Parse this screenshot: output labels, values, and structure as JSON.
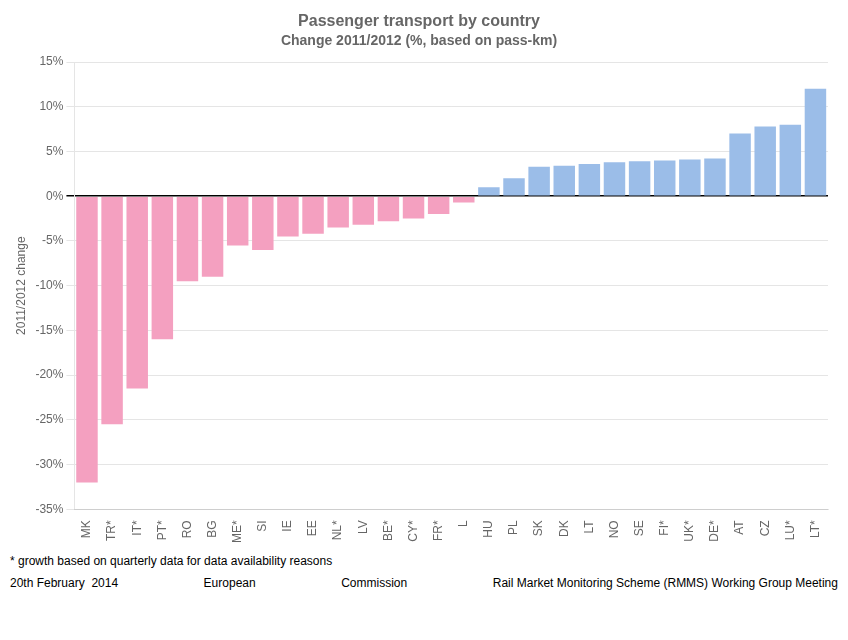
{
  "chart_data": {
    "type": "bar",
    "title": "Passenger transport by country",
    "subtitle": "Change 2011/2012 (%, based on pass-km)",
    "ylabel": "2011/2012 change",
    "categories": [
      "MK",
      "TR*",
      "IT*",
      "PT*",
      "RO",
      "BG",
      "ME*",
      "SI",
      "IE",
      "EE",
      "NL*",
      "LV",
      "BE*",
      "CY*",
      "FR*",
      "L",
      "HU",
      "PL",
      "SK",
      "DK",
      "LT",
      "NO",
      "SE",
      "FI*",
      "UK*",
      "DE*",
      "AT",
      "CZ",
      "LU*",
      "LT*"
    ],
    "values": [
      -32.0,
      -25.5,
      -21.5,
      -16.0,
      -9.5,
      -9.0,
      -5.5,
      -6.0,
      -4.5,
      -4.2,
      -3.5,
      -3.2,
      -2.8,
      -2.5,
      -2.0,
      -0.7,
      1.0,
      2.0,
      3.3,
      3.4,
      3.6,
      3.8,
      3.9,
      4.0,
      4.1,
      4.2,
      7.0,
      7.8,
      8.0,
      12.0
    ],
    "colors": [
      "#F4A0C0",
      "#F4A0C0",
      "#F4A0C0",
      "#F4A0C0",
      "#F4A0C0",
      "#F4A0C0",
      "#F4A0C0",
      "#F4A0C0",
      "#F4A0C0",
      "#F4A0C0",
      "#F4A0C0",
      "#F4A0C0",
      "#F4A0C0",
      "#F4A0C0",
      "#F4A0C0",
      "#F4A0C0",
      "#9BBDE8",
      "#9BBDE8",
      "#9BBDE8",
      "#9BBDE8",
      "#9BBDE8",
      "#9BBDE8",
      "#9BBDE8",
      "#9BBDE8",
      "#9BBDE8",
      "#9BBDE8",
      "#9BBDE8",
      "#9BBDE8",
      "#9BBDE8",
      "#9BBDE8"
    ],
    "ylim": [
      -35,
      15
    ],
    "yticks": [
      {
        "value": -35,
        "label": "-35%"
      },
      {
        "value": -30,
        "label": "-30%"
      },
      {
        "value": -25,
        "label": "-25%"
      },
      {
        "value": -20,
        "label": "-20%"
      },
      {
        "value": -15,
        "label": "-15%"
      },
      {
        "value": -10,
        "label": "-10%"
      },
      {
        "value": -5,
        "label": "-5%"
      },
      {
        "value": 0,
        "label": "0%"
      },
      {
        "value": 5,
        "label": "5%"
      },
      {
        "value": 10,
        "label": "10%"
      },
      {
        "value": 15,
        "label": "15%"
      }
    ],
    "grid": true,
    "annotations": [
      "* growth based on quarterly data for data availability reasons",
      "20th February  2014",
      "European",
      "Commission",
      "Rail Market Monitoring Scheme (RMMS) Working Group Meeting"
    ]
  }
}
